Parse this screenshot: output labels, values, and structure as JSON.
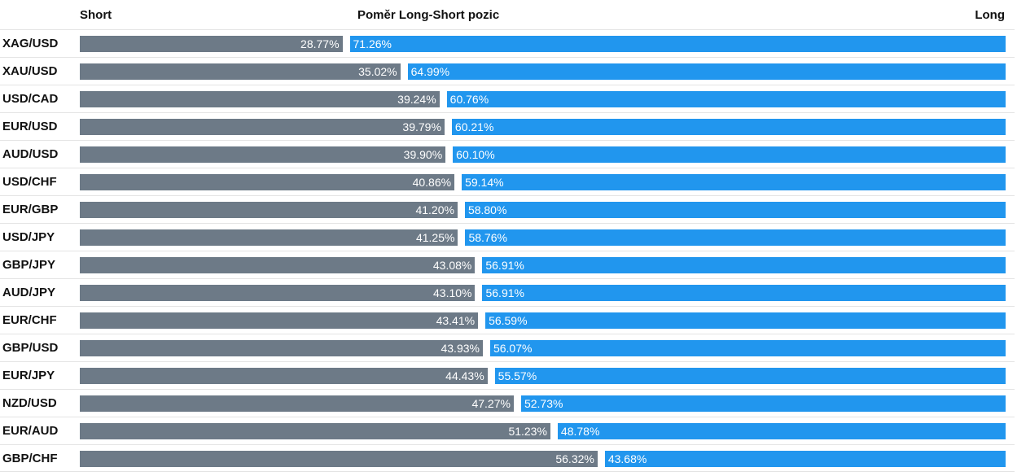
{
  "header": {
    "short_label": "Short",
    "title": "Poměr Long-Short pozic",
    "long_label": "Long"
  },
  "colors": {
    "short": "#6d7a87",
    "long": "#2196ee"
  },
  "chart_data": {
    "type": "bar",
    "orientation": "horizontal",
    "stacked": true,
    "title": "Poměr Long-Short pozic",
    "categories": [
      "XAG/USD",
      "XAU/USD",
      "USD/CAD",
      "EUR/USD",
      "AUD/USD",
      "USD/CHF",
      "EUR/GBP",
      "USD/JPY",
      "GBP/JPY",
      "AUD/JPY",
      "EUR/CHF",
      "GBP/USD",
      "EUR/JPY",
      "NZD/USD",
      "EUR/AUD",
      "GBP/CHF"
    ],
    "series": [
      {
        "name": "Short",
        "values": [
          28.77,
          35.02,
          39.24,
          39.79,
          39.9,
          40.86,
          41.2,
          41.25,
          43.08,
          43.1,
          43.41,
          43.93,
          44.43,
          47.27,
          51.23,
          56.32
        ],
        "labels": [
          "28.77%",
          "35.02%",
          "39.24%",
          "39.79%",
          "39.90%",
          "40.86%",
          "41.20%",
          "41.25%",
          "43.08%",
          "43.10%",
          "43.41%",
          "43.93%",
          "44.43%",
          "47.27%",
          "51.23%",
          "56.32%"
        ]
      },
      {
        "name": "Long",
        "values": [
          71.26,
          64.99,
          60.76,
          60.21,
          60.1,
          59.14,
          58.8,
          58.76,
          56.91,
          56.91,
          56.59,
          56.07,
          55.57,
          52.73,
          48.78,
          43.68
        ],
        "labels": [
          "71.26%",
          "64.99%",
          "60.76%",
          "60.21%",
          "60.10%",
          "59.14%",
          "58.80%",
          "58.76%",
          "56.91%",
          "56.91%",
          "56.59%",
          "56.07%",
          "55.57%",
          "52.73%",
          "48.78%",
          "43.68%"
        ]
      }
    ],
    "xlim": [
      0,
      100
    ],
    "legend": "top"
  }
}
